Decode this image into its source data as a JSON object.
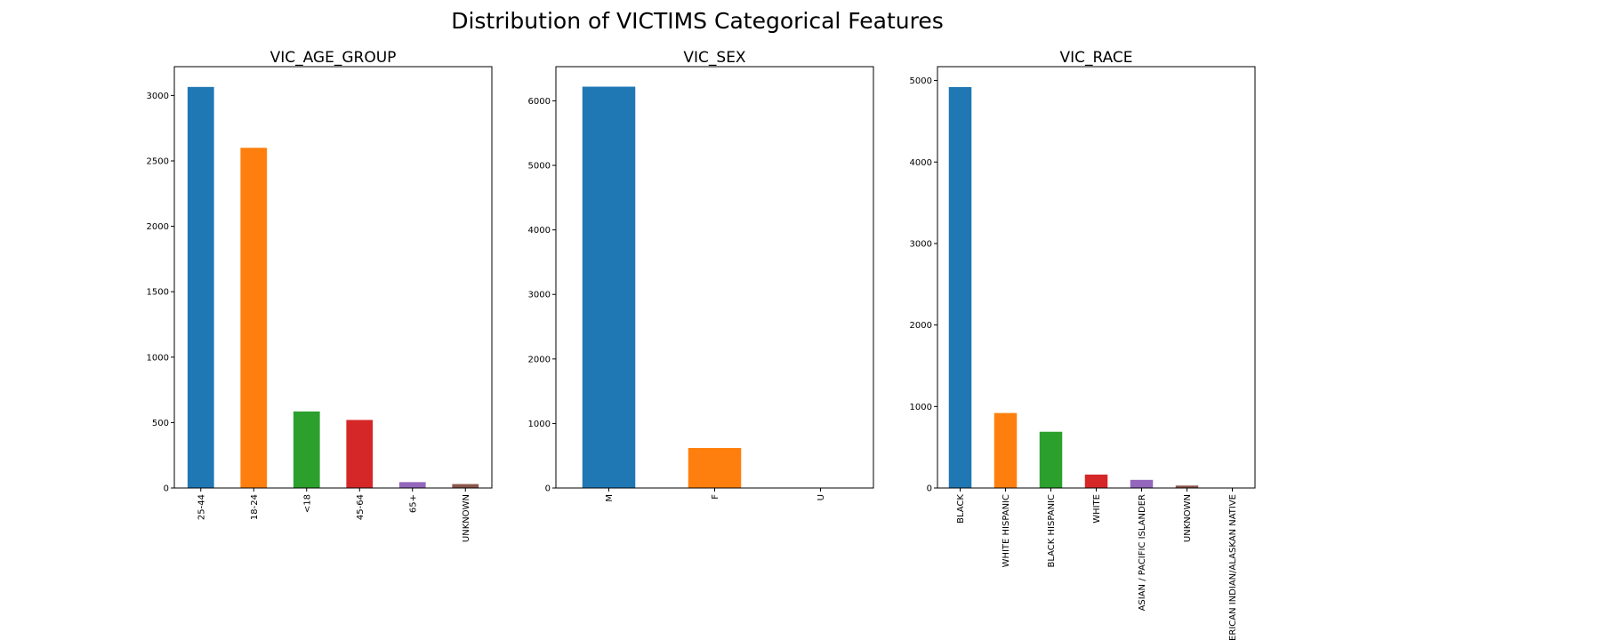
{
  "figure": {
    "title": "Distribution of VICTIMS Categorical Features"
  },
  "chart_data": [
    {
      "type": "bar",
      "title": "VIC_AGE_GROUP",
      "xlabel": "",
      "ylabel": "",
      "categories": [
        "25-44",
        "18-24",
        "<18",
        "45-64",
        "65+",
        "UNKNOWN"
      ],
      "values": [
        3065,
        2600,
        585,
        520,
        45,
        30
      ],
      "colors": [
        "#1f77b4",
        "#ff7f0e",
        "#2ca02c",
        "#d62728",
        "#9467bd",
        "#8c564b"
      ],
      "ylim": [
        0,
        3220
      ],
      "yticks": [
        0,
        500,
        1000,
        1500,
        2000,
        2500,
        3000
      ],
      "grid": false,
      "legend": "none"
    },
    {
      "type": "bar",
      "title": "VIC_SEX",
      "xlabel": "",
      "ylabel": "",
      "categories": [
        "M",
        "F",
        "U"
      ],
      "values": [
        6220,
        620,
        5
      ],
      "colors": [
        "#1f77b4",
        "#ff7f0e",
        "#2ca02c"
      ],
      "ylim": [
        0,
        6530
      ],
      "yticks": [
        0,
        1000,
        2000,
        3000,
        4000,
        5000,
        6000
      ],
      "grid": false,
      "legend": "none"
    },
    {
      "type": "bar",
      "title": "VIC_RACE",
      "xlabel": "",
      "ylabel": "",
      "categories": [
        "BLACK",
        "WHITE HISPANIC",
        "BLACK HISPANIC",
        "WHITE",
        "ASIAN / PACIFIC ISLANDER",
        "UNKNOWN",
        "AMERICAN INDIAN/ALASKAN NATIVE"
      ],
      "values": [
        4920,
        920,
        690,
        165,
        100,
        30,
        2
      ],
      "colors": [
        "#1f77b4",
        "#ff7f0e",
        "#2ca02c",
        "#d62728",
        "#9467bd",
        "#8c564b",
        "#e377c2"
      ],
      "ylim": [
        0,
        5170
      ],
      "yticks": [
        0,
        1000,
        2000,
        3000,
        4000,
        5000
      ],
      "grid": false,
      "legend": "none"
    }
  ]
}
